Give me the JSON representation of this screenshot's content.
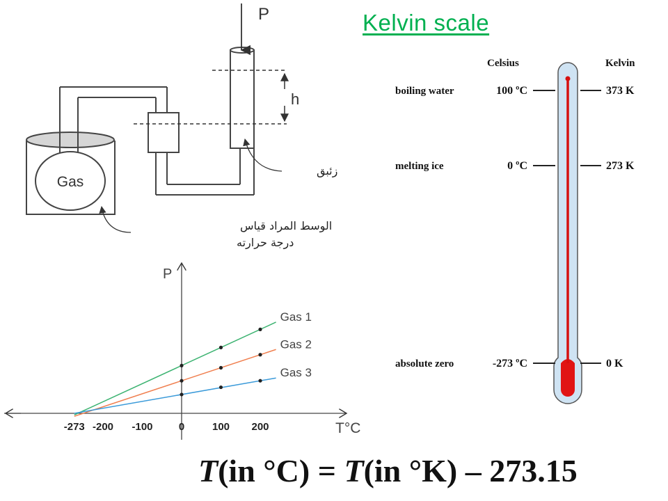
{
  "title": "Kelvin scale",
  "gas_apparatus": {
    "pressure_label": "P",
    "height_label": "h",
    "gas_label": "Gas",
    "mercury_label": "زئبق",
    "medium_label_line1": "الوسط المراد قياس",
    "medium_label_line2": "درجة حرارته"
  },
  "chart_data": {
    "type": "line",
    "ylabel": "P",
    "xlabel": "T°C",
    "x_ticks": [
      "-273",
      "-200",
      "-100",
      "0",
      "100",
      "200"
    ],
    "x_tick_values": [
      -273,
      -200,
      -100,
      0,
      100,
      200
    ],
    "xlim": [
      -273,
      240
    ],
    "ylim": [
      0,
      1
    ],
    "extrapolate_to": -273,
    "series": [
      {
        "name": "Gas 1",
        "color": "#3cb371",
        "x": [
          0,
          100,
          200
        ],
        "y": [
          0.66,
          0.91,
          1.16
        ]
      },
      {
        "name": "Gas 2",
        "color": "#f07f4f",
        "x": [
          0,
          100,
          200
        ],
        "y": [
          0.45,
          0.63,
          0.81
        ]
      },
      {
        "name": "Gas 3",
        "color": "#3a9ad9",
        "x": [
          0,
          100,
          200
        ],
        "y": [
          0.26,
          0.36,
          0.45
        ]
      }
    ]
  },
  "thermometer": {
    "celsius_header": "Celsius",
    "kelvin_header": "Kelvin",
    "rows": [
      {
        "label": "boiling water",
        "celsius": "100 ºC",
        "kelvin": "373 K"
      },
      {
        "label": "melting ice",
        "celsius": "0 ºC",
        "kelvin": "273 K"
      },
      {
        "label": "absolute zero",
        "celsius": "-273 ºC",
        "kelvin": "0 K"
      }
    ]
  },
  "formula": {
    "lhs_var": "T",
    "lhs_unit": "(in °C)",
    "equals": " = ",
    "rhs_var": "T",
    "rhs_unit": "(in °K)",
    "rhs_tail": " – 273.15"
  }
}
